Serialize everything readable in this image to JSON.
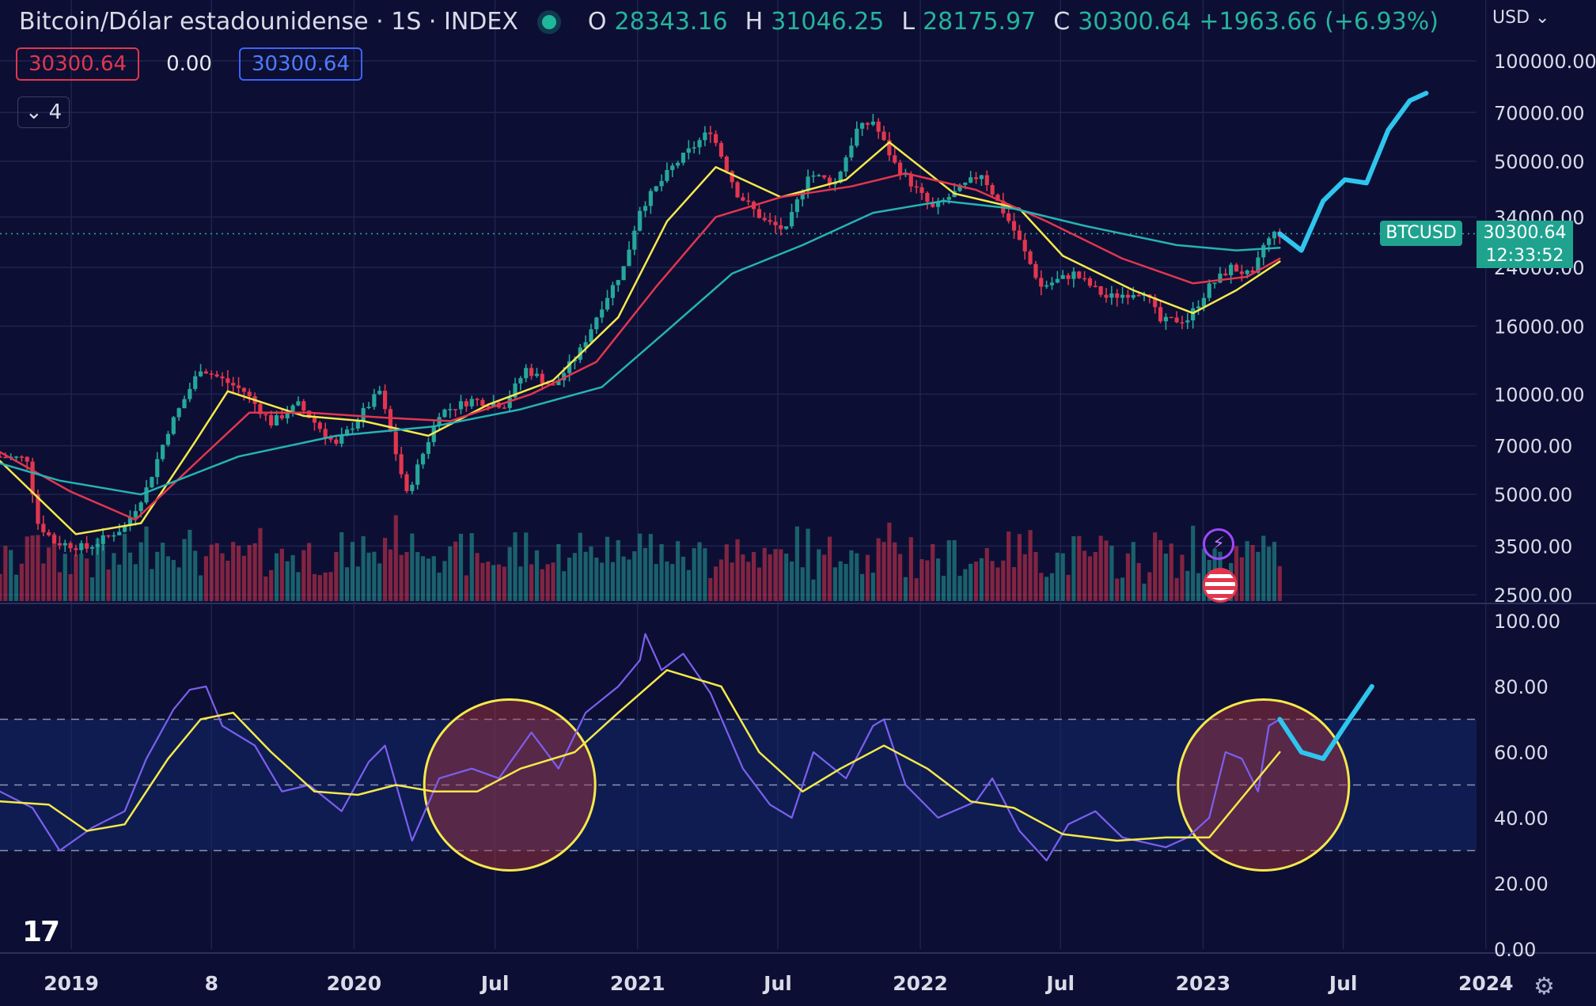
{
  "header": {
    "symbol": "Bitcoin/Dólar estadounidense · 1S · INDEX",
    "open_key": "O",
    "open": "28343.16",
    "high_key": "H",
    "high": "31046.25",
    "low_key": "L",
    "low": "28175.97",
    "close_key": "C",
    "close": "30300.64",
    "change": "+1963.66 (+6.93%)"
  },
  "quote": {
    "bid": "30300.64",
    "spread": "0.00",
    "ask": "30300.64"
  },
  "collapse_count": "4",
  "currency": "USD",
  "price_tag": {
    "symbol": "BTCUSD",
    "price": "30300.64",
    "countdown": "12:33:52"
  },
  "colors": {
    "bg": "#0c0f33",
    "up": "#26a69a",
    "down": "#e2364f",
    "ma_fast": "#f5e94b",
    "ma_mid": "#e2364f",
    "ma_slow": "#26b3b3",
    "rsi": "#7c5ff0",
    "forecast": "#2ec5ee"
  },
  "chart_data": [
    {
      "type": "candlestick",
      "title": "",
      "y_scale": "log",
      "y_ticks": [
        "100000.00",
        "70000.00",
        "50000.00",
        "34000.00",
        "24000.00",
        "16000.00",
        "10000.00",
        "7000.00",
        "5000.00",
        "3500.00",
        "2500.00"
      ],
      "x_ticks": [
        "2019",
        "8",
        "2020",
        "Jul",
        "2021",
        "Jul",
        "2022",
        "Jul",
        "2023",
        "Jul",
        "2024"
      ],
      "x_tick_dates": [
        "2019-01-01",
        "2019-07-01",
        "2020-01-01",
        "2020-07-01",
        "2021-01-01",
        "2021-07-01",
        "2022-01-01",
        "2022-07-01",
        "2023-01-01",
        "2023-07-01",
        "2024-01-01"
      ],
      "start_date": "2018-10-01",
      "price_path": [
        [
          "2018-10-01",
          6500
        ],
        [
          "2018-11-12",
          6400
        ],
        [
          "2018-11-26",
          4100
        ],
        [
          "2018-12-17",
          3600
        ],
        [
          "2019-01-28",
          3450
        ],
        [
          "2019-03-18",
          4000
        ],
        [
          "2019-04-15",
          5200
        ],
        [
          "2019-05-13",
          7800
        ],
        [
          "2019-06-24",
          12000
        ],
        [
          "2019-07-08",
          11500
        ],
        [
          "2019-08-19",
          10200
        ],
        [
          "2019-09-23",
          8200
        ],
        [
          "2019-10-28",
          9300
        ],
        [
          "2019-12-16",
          7000
        ],
        [
          "2020-02-10",
          10200
        ],
        [
          "2020-03-16",
          5000
        ],
        [
          "2020-04-27",
          8800
        ],
        [
          "2020-06-08",
          9600
        ],
        [
          "2020-07-20",
          9300
        ],
        [
          "2020-08-17",
          11900
        ],
        [
          "2020-09-21",
          10500
        ],
        [
          "2020-10-26",
          13500
        ],
        [
          "2020-11-23",
          18500
        ],
        [
          "2020-12-21",
          24000
        ],
        [
          "2021-01-11",
          36000
        ],
        [
          "2021-02-22",
          48000
        ],
        [
          "2021-04-12",
          62000
        ],
        [
          "2021-05-17",
          40000
        ],
        [
          "2021-06-21",
          33000
        ],
        [
          "2021-07-19",
          31000
        ],
        [
          "2021-08-16",
          46000
        ],
        [
          "2021-09-20",
          43000
        ],
        [
          "2021-10-18",
          62000
        ],
        [
          "2021-11-08",
          66000
        ],
        [
          "2021-12-06",
          49000
        ],
        [
          "2022-01-24",
          36000
        ],
        [
          "2022-03-28",
          46000
        ],
        [
          "2022-05-09",
          31000
        ],
        [
          "2022-06-13",
          21000
        ],
        [
          "2022-07-25",
          23000
        ],
        [
          "2022-09-05",
          19500
        ],
        [
          "2022-10-24",
          20500
        ],
        [
          "2022-11-14",
          16500
        ],
        [
          "2022-12-19",
          16800
        ],
        [
          "2023-01-16",
          21000
        ],
        [
          "2023-02-13",
          24000
        ],
        [
          "2023-03-13",
          22500
        ],
        [
          "2023-03-27",
          28000
        ],
        [
          "2023-04-10",
          30300
        ]
      ],
      "moving_averages": [
        {
          "name": "",
          "path": [
            [
              "2018-10-01",
              6300
            ],
            [
              "2019-01-07",
              3800
            ],
            [
              "2019-04-01",
              4100
            ],
            [
              "2019-06-10",
              7200
            ],
            [
              "2019-07-22",
              10200
            ],
            [
              "2019-10-28",
              8600
            ],
            [
              "2020-01-13",
              8300
            ],
            [
              "2020-04-06",
              7500
            ],
            [
              "2020-06-22",
              9300
            ],
            [
              "2020-09-14",
              11000
            ],
            [
              "2020-12-07",
              17000
            ],
            [
              "2021-02-08",
              33000
            ],
            [
              "2021-04-12",
              48000
            ],
            [
              "2021-07-05",
              39000
            ],
            [
              "2021-09-27",
              44000
            ],
            [
              "2021-11-22",
              57000
            ],
            [
              "2022-02-14",
              40000
            ],
            [
              "2022-05-09",
              36000
            ],
            [
              "2022-07-04",
              26000
            ],
            [
              "2022-10-03",
              20500
            ],
            [
              "2022-12-19",
              17500
            ],
            [
              "2023-02-13",
              20500
            ],
            [
              "2023-04-10",
              25000
            ]
          ]
        },
        {
          "name": "",
          "path": [
            [
              "2018-10-01",
              6700
            ],
            [
              "2018-12-31",
              5100
            ],
            [
              "2019-03-25",
              4200
            ],
            [
              "2019-06-10",
              6200
            ],
            [
              "2019-08-19",
              8800
            ],
            [
              "2019-11-04",
              8800
            ],
            [
              "2020-02-10",
              8500
            ],
            [
              "2020-05-04",
              8300
            ],
            [
              "2020-08-17",
              10000
            ],
            [
              "2020-11-09",
              12500
            ],
            [
              "2021-01-25",
              21000
            ],
            [
              "2021-04-12",
              34000
            ],
            [
              "2021-07-05",
              39000
            ],
            [
              "2021-10-04",
              42000
            ],
            [
              "2021-12-13",
              46000
            ],
            [
              "2022-03-14",
              41000
            ],
            [
              "2022-06-13",
              33000
            ],
            [
              "2022-09-19",
              25500
            ],
            [
              "2022-12-19",
              21500
            ],
            [
              "2023-02-27",
              22500
            ],
            [
              "2023-04-10",
              25500
            ]
          ]
        },
        {
          "name": "",
          "path": [
            [
              "2018-10-01",
              6200
            ],
            [
              "2018-12-17",
              5500
            ],
            [
              "2019-04-01",
              5000
            ],
            [
              "2019-08-05",
              6500
            ],
            [
              "2019-12-09",
              7500
            ],
            [
              "2020-04-13",
              8000
            ],
            [
              "2020-08-03",
              9000
            ],
            [
              "2020-11-16",
              10500
            ],
            [
              "2021-02-08",
              15500
            ],
            [
              "2021-05-03",
              23000
            ],
            [
              "2021-08-02",
              28000
            ],
            [
              "2021-11-01",
              35000
            ],
            [
              "2022-01-31",
              38000
            ],
            [
              "2022-05-02",
              36000
            ],
            [
              "2022-08-01",
              32000
            ],
            [
              "2022-11-28",
              28000
            ],
            [
              "2023-02-13",
              27000
            ],
            [
              "2023-04-10",
              27500
            ]
          ]
        }
      ],
      "forecast_path": [
        [
          "2023-04-10",
          30300
        ],
        [
          "2023-05-08",
          27000
        ],
        [
          "2023-06-05",
          38000
        ],
        [
          "2023-07-03",
          44000
        ],
        [
          "2023-07-31",
          43000
        ],
        [
          "2023-08-28",
          62000
        ],
        [
          "2023-09-25",
          76000
        ],
        [
          "2023-10-16",
          80000
        ]
      ],
      "volume": "weekly, colored by candle direction"
    },
    {
      "type": "line",
      "title": "",
      "y_ticks": [
        "100.00",
        "80.00",
        "60.00",
        "40.00",
        "20.00",
        "0.00"
      ],
      "ylim": [
        0,
        100
      ],
      "levels": [
        70,
        50,
        30
      ],
      "rsi_path": [
        [
          "2018-10-01",
          48
        ],
        [
          "2018-11-12",
          43
        ],
        [
          "2018-12-17",
          30
        ],
        [
          "2019-01-28",
          37
        ],
        [
          "2019-03-11",
          42
        ],
        [
          "2019-04-08",
          58
        ],
        [
          "2019-05-13",
          73
        ],
        [
          "2019-06-03",
          79
        ],
        [
          "2019-06-24",
          80
        ],
        [
          "2019-07-15",
          68
        ],
        [
          "2019-08-26",
          62
        ],
        [
          "2019-09-30",
          48
        ],
        [
          "2019-11-04",
          50
        ],
        [
          "2019-12-16",
          42
        ],
        [
          "2020-01-20",
          57
        ],
        [
          "2020-02-10",
          62
        ],
        [
          "2020-03-16",
          33
        ],
        [
          "2020-04-20",
          52
        ],
        [
          "2020-06-01",
          55
        ],
        [
          "2020-07-06",
          52
        ],
        [
          "2020-08-17",
          66
        ],
        [
          "2020-09-21",
          55
        ],
        [
          "2020-10-26",
          72
        ],
        [
          "2020-12-07",
          80
        ],
        [
          "2021-01-04",
          88
        ],
        [
          "2021-01-11",
          96
        ],
        [
          "2021-02-01",
          85
        ],
        [
          "2021-03-01",
          90
        ],
        [
          "2021-04-05",
          78
        ],
        [
          "2021-05-17",
          55
        ],
        [
          "2021-06-21",
          44
        ],
        [
          "2021-07-19",
          40
        ],
        [
          "2021-08-16",
          60
        ],
        [
          "2021-09-27",
          52
        ],
        [
          "2021-11-01",
          68
        ],
        [
          "2021-11-15",
          70
        ],
        [
          "2021-12-13",
          50
        ],
        [
          "2022-01-24",
          40
        ],
        [
          "2022-03-14",
          45
        ],
        [
          "2022-04-04",
          52
        ],
        [
          "2022-05-09",
          36
        ],
        [
          "2022-06-13",
          27
        ],
        [
          "2022-07-11",
          38
        ],
        [
          "2022-08-15",
          42
        ],
        [
          "2022-09-19",
          34
        ],
        [
          "2022-11-14",
          31
        ],
        [
          "2022-12-12",
          34
        ],
        [
          "2023-01-09",
          40
        ],
        [
          "2023-01-30",
          60
        ],
        [
          "2023-02-20",
          58
        ],
        [
          "2023-03-13",
          48
        ],
        [
          "2023-03-27",
          68
        ],
        [
          "2023-04-10",
          70
        ]
      ],
      "rsi_ma_path": [
        [
          "2018-10-01",
          45
        ],
        [
          "2018-12-03",
          44
        ],
        [
          "2019-01-21",
          36
        ],
        [
          "2019-03-11",
          38
        ],
        [
          "2019-05-06",
          58
        ],
        [
          "2019-06-17",
          70
        ],
        [
          "2019-07-29",
          72
        ],
        [
          "2019-09-16",
          60
        ],
        [
          "2019-11-11",
          48
        ],
        [
          "2020-01-06",
          47
        ],
        [
          "2020-02-24",
          50
        ],
        [
          "2020-04-13",
          48
        ],
        [
          "2020-06-08",
          48
        ],
        [
          "2020-08-03",
          55
        ],
        [
          "2020-10-12",
          60
        ],
        [
          "2020-12-07",
          72
        ],
        [
          "2021-02-08",
          85
        ],
        [
          "2021-04-19",
          80
        ],
        [
          "2021-06-07",
          60
        ],
        [
          "2021-08-02",
          48
        ],
        [
          "2021-09-20",
          55
        ],
        [
          "2021-11-15",
          62
        ],
        [
          "2022-01-10",
          55
        ],
        [
          "2022-03-07",
          45
        ],
        [
          "2022-05-02",
          43
        ],
        [
          "2022-07-04",
          35
        ],
        [
          "2022-09-12",
          33
        ],
        [
          "2022-11-14",
          34
        ],
        [
          "2023-01-09",
          34
        ],
        [
          "2023-02-27",
          48
        ],
        [
          "2023-04-10",
          60
        ]
      ],
      "forecast_path": [
        [
          "2023-04-10",
          70
        ],
        [
          "2023-05-08",
          60
        ],
        [
          "2023-06-05",
          58
        ],
        [
          "2023-07-03",
          68
        ],
        [
          "2023-08-07",
          80
        ]
      ],
      "highlight_circles": [
        {
          "date": "2020-07-20",
          "value": 50
        },
        {
          "date": "2023-03-20",
          "value": 50
        }
      ]
    }
  ]
}
